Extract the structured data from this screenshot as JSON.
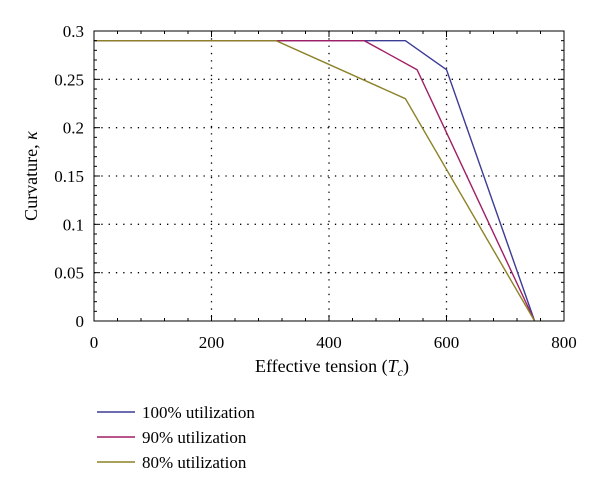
{
  "chart_data": {
    "type": "line",
    "xlabel": "Effective tension",
    "xlabel_unit": "T",
    "xlabel_unit_sub": "c",
    "ylabel": "Curvature,",
    "ylabel_symbol": "κ",
    "xlim": [
      0,
      800
    ],
    "ylim": [
      0,
      0.3
    ],
    "xticks": [
      0,
      200,
      400,
      600,
      800
    ],
    "yticks": [
      0,
      0.05,
      0.1,
      0.15,
      0.2,
      0.25,
      0.3
    ],
    "xtick_labels": [
      "0",
      "200",
      "400",
      "600",
      "800"
    ],
    "ytick_labels": [
      "0",
      "0.05",
      "0.1",
      "0.15",
      "0.2",
      "0.25",
      "0.3"
    ],
    "grid": true,
    "legend_position": "below",
    "series": [
      {
        "name": "100% utilization",
        "color": "#3c3c96",
        "x": [
          0,
          530,
          600,
          750
        ],
        "y": [
          0.29,
          0.29,
          0.26,
          0
        ]
      },
      {
        "name": "90% utilization",
        "color": "#a01e64",
        "x": [
          0,
          460,
          550,
          750
        ],
        "y": [
          0.29,
          0.29,
          0.26,
          0
        ]
      },
      {
        "name": "80% utilization",
        "color": "#8c8228",
        "x": [
          0,
          310,
          530,
          750
        ],
        "y": [
          0.29,
          0.29,
          0.23,
          0
        ]
      }
    ]
  }
}
